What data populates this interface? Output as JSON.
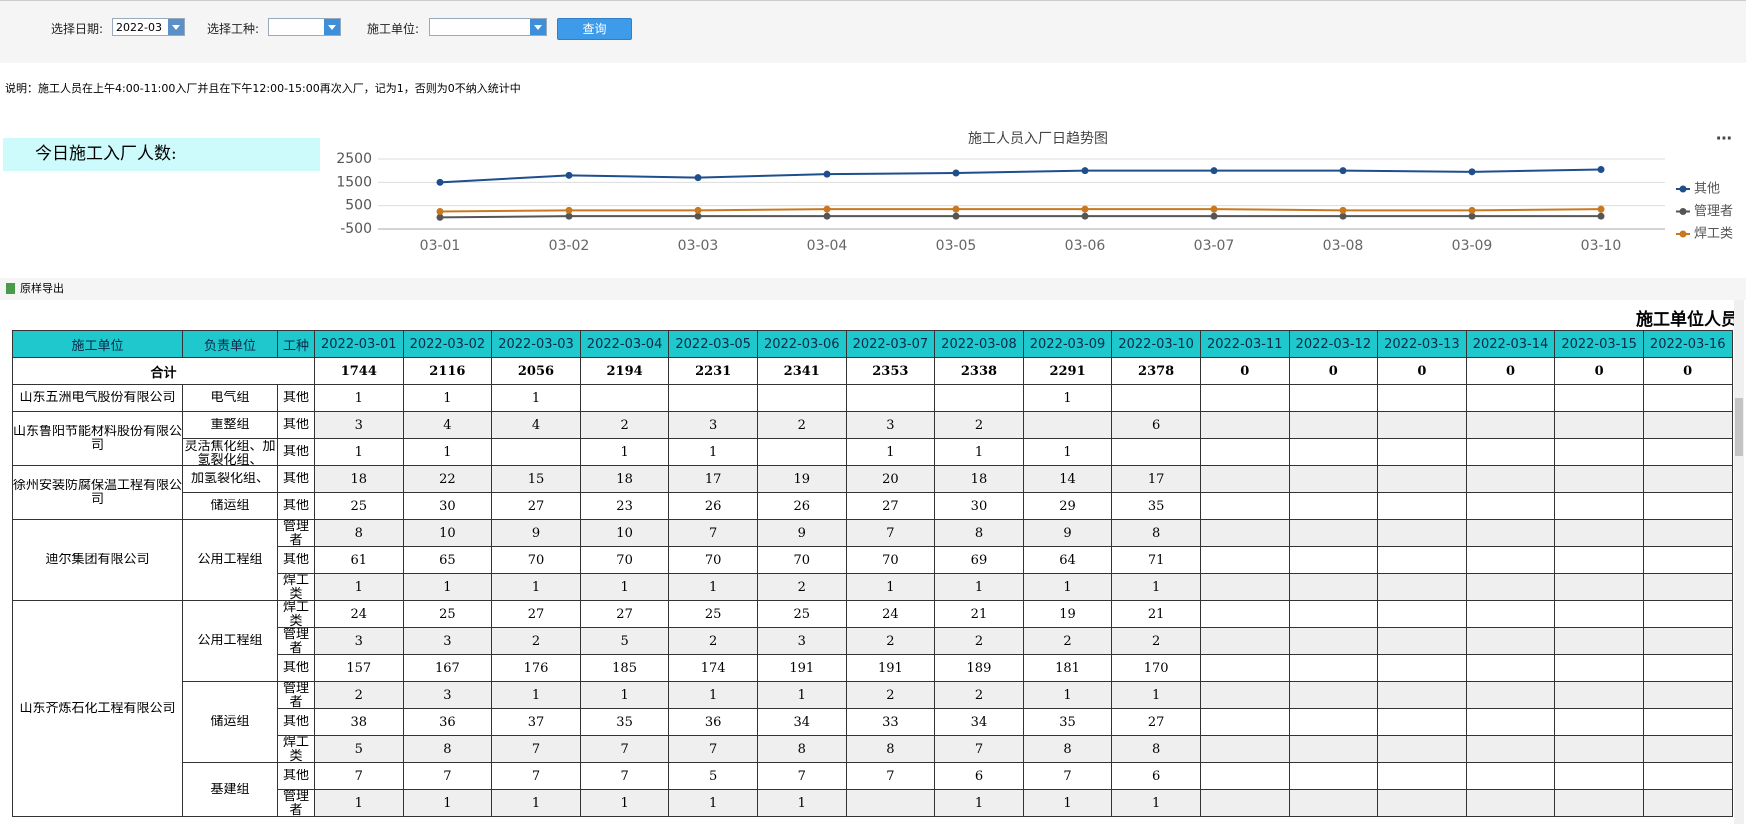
{
  "filter_bar": {
    "date_label": "选择日期:",
    "date_value": "2022-03",
    "type_label": "选择工种:",
    "unit_label": "施工单位:",
    "query_button": "查询"
  },
  "note": "说明：施工人员在上午4:00-11:00入厂并且在下午12:00-15:00再次入厂，记为1，否则为0不纳入统计中",
  "today_label": "今日施工入厂人数:",
  "chart_data": {
    "type": "line",
    "title": "施工人员入厂日趋势图",
    "categories": [
      "03-01",
      "03-02",
      "03-03",
      "03-04",
      "03-05",
      "03-06",
      "03-07",
      "03-08",
      "03-09",
      "03-10"
    ],
    "series": [
      {
        "name": "其他",
        "color": "#1f4e8c",
        "values": [
          1500,
          1800,
          1700,
          1850,
          1900,
          2000,
          2000,
          2000,
          1950,
          2050
        ]
      },
      {
        "name": "管理者",
        "color": "#555555",
        "values": [
          0,
          50,
          50,
          50,
          50,
          50,
          50,
          50,
          50,
          50
        ]
      },
      {
        "name": "焊工类",
        "color": "#c8781e",
        "values": [
          250,
          300,
          300,
          350,
          350,
          350,
          350,
          300,
          300,
          350
        ]
      }
    ],
    "ylim": [
      -500,
      2500
    ],
    "yticks": [
      -500,
      500,
      1500,
      2500
    ],
    "grid": true,
    "legend": "right"
  },
  "export_button": "原样导出",
  "table": {
    "title": "施工单位人员",
    "headers": [
      "施工单位",
      "负责单位",
      "工种"
    ],
    "dates": [
      "2022-03-01",
      "2022-03-02",
      "2022-03-03",
      "2022-03-04",
      "2022-03-05",
      "2022-03-06",
      "2022-03-07",
      "2022-03-08",
      "2022-03-09",
      "2022-03-10",
      "2022-03-11",
      "2022-03-12",
      "2022-03-13",
      "2022-03-14",
      "2022-03-15",
      "2022-03-16"
    ],
    "total_label": "合计",
    "totals": [
      1744,
      2116,
      2056,
      2194,
      2231,
      2341,
      2353,
      2338,
      2291,
      2378,
      0,
      0,
      0,
      0,
      0,
      0
    ],
    "groups": [
      {
        "unit": "山东五洲电气股份有限公司",
        "depts": [
          {
            "dept": "电气组",
            "rows": [
              {
                "type": "其他",
                "values": [
                  1,
                  1,
                  1,
                  null,
                  null,
                  null,
                  null,
                  null,
                  1,
                  null,
                  null,
                  null,
                  null,
                  null,
                  null,
                  null
                ]
              }
            ]
          }
        ]
      },
      {
        "unit": "山东鲁阳节能材料股份有限公司",
        "depts": [
          {
            "dept": "重整组",
            "rows": [
              {
                "type": "其他",
                "values": [
                  3,
                  4,
                  4,
                  2,
                  3,
                  2,
                  3,
                  2,
                  null,
                  6,
                  null,
                  null,
                  null,
                  null,
                  null,
                  null
                ]
              }
            ]
          },
          {
            "dept": "灵活焦化组、加氢裂化组、",
            "rows": [
              {
                "type": "其他",
                "values": [
                  1,
                  1,
                  null,
                  1,
                  1,
                  null,
                  1,
                  1,
                  1,
                  null,
                  null,
                  null,
                  null,
                  null,
                  null,
                  null
                ]
              }
            ]
          }
        ]
      },
      {
        "unit": "徐州安装防腐保温工程有限公司",
        "depts": [
          {
            "dept": "加氢裂化组、",
            "rows": [
              {
                "type": "其他",
                "values": [
                  18,
                  22,
                  15,
                  18,
                  17,
                  19,
                  20,
                  18,
                  14,
                  17,
                  null,
                  null,
                  null,
                  null,
                  null,
                  null
                ]
              }
            ]
          },
          {
            "dept": "储运组",
            "rows": [
              {
                "type": "其他",
                "values": [
                  25,
                  30,
                  27,
                  23,
                  26,
                  26,
                  27,
                  30,
                  29,
                  35,
                  null,
                  null,
                  null,
                  null,
                  null,
                  null
                ]
              }
            ]
          }
        ]
      },
      {
        "unit": "迪尔集团有限公司",
        "depts": [
          {
            "dept": "公用工程组",
            "rows": [
              {
                "type": "管理者",
                "values": [
                  8,
                  10,
                  9,
                  10,
                  7,
                  9,
                  7,
                  8,
                  9,
                  8,
                  null,
                  null,
                  null,
                  null,
                  null,
                  null
                ]
              },
              {
                "type": "其他",
                "values": [
                  61,
                  65,
                  70,
                  70,
                  70,
                  70,
                  70,
                  69,
                  64,
                  71,
                  null,
                  null,
                  null,
                  null,
                  null,
                  null
                ]
              },
              {
                "type": "焊工类",
                "values": [
                  1,
                  1,
                  1,
                  1,
                  1,
                  2,
                  1,
                  1,
                  1,
                  1,
                  null,
                  null,
                  null,
                  null,
                  null,
                  null
                ]
              }
            ]
          }
        ]
      },
      {
        "unit": "山东齐炼石化工程有限公司",
        "depts": [
          {
            "dept": "公用工程组",
            "rows": [
              {
                "type": "焊工类",
                "values": [
                  24,
                  25,
                  27,
                  27,
                  25,
                  25,
                  24,
                  21,
                  19,
                  21,
                  null,
                  null,
                  null,
                  null,
                  null,
                  null
                ]
              },
              {
                "type": "管理者",
                "values": [
                  3,
                  3,
                  2,
                  5,
                  2,
                  3,
                  2,
                  2,
                  2,
                  2,
                  null,
                  null,
                  null,
                  null,
                  null,
                  null
                ]
              },
              {
                "type": "其他",
                "values": [
                  157,
                  167,
                  176,
                  185,
                  174,
                  191,
                  191,
                  189,
                  181,
                  170,
                  null,
                  null,
                  null,
                  null,
                  null,
                  null
                ]
              }
            ]
          },
          {
            "dept": "储运组",
            "rows": [
              {
                "type": "管理者",
                "values": [
                  2,
                  3,
                  1,
                  1,
                  1,
                  1,
                  2,
                  2,
                  1,
                  1,
                  null,
                  null,
                  null,
                  null,
                  null,
                  null
                ]
              },
              {
                "type": "其他",
                "values": [
                  38,
                  36,
                  37,
                  35,
                  36,
                  34,
                  33,
                  34,
                  35,
                  27,
                  null,
                  null,
                  null,
                  null,
                  null,
                  null
                ]
              },
              {
                "type": "焊工类",
                "values": [
                  5,
                  8,
                  7,
                  7,
                  7,
                  8,
                  8,
                  7,
                  8,
                  8,
                  null,
                  null,
                  null,
                  null,
                  null,
                  null
                ]
              }
            ]
          },
          {
            "dept": "基建组",
            "rows": [
              {
                "type": "其他",
                "values": [
                  7,
                  7,
                  7,
                  7,
                  5,
                  7,
                  7,
                  6,
                  7,
                  6,
                  null,
                  null,
                  null,
                  null,
                  null,
                  null
                ]
              },
              {
                "type": "管理者",
                "values": [
                  1,
                  1,
                  1,
                  1,
                  1,
                  1,
                  null,
                  1,
                  1,
                  1,
                  null,
                  null,
                  null,
                  null,
                  null,
                  null
                ]
              }
            ]
          }
        ]
      }
    ]
  }
}
